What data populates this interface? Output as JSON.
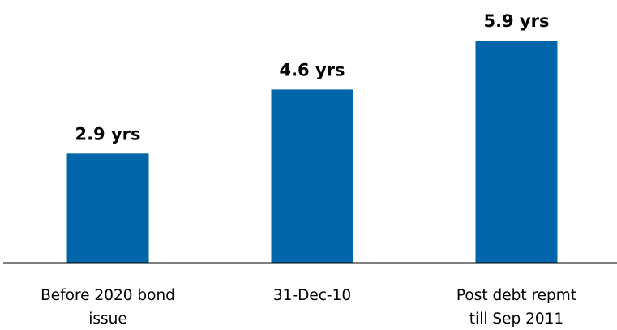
{
  "chart_data": {
    "type": "bar",
    "categories": [
      [
        "Before 2020 bond",
        "issue"
      ],
      [
        "31-Dec-10"
      ],
      [
        "Post debt repmt",
        "till Sep 2011"
      ]
    ],
    "values": [
      2.9,
      4.6,
      5.9
    ],
    "data_labels": [
      "2.9 yrs",
      "4.6 yrs",
      "5.9 yrs"
    ],
    "title": "",
    "xlabel": "",
    "ylabel": "",
    "ylim": [
      0,
      6.3
    ],
    "grid": false,
    "legend": "none",
    "bar_color": "#0066A9"
  }
}
